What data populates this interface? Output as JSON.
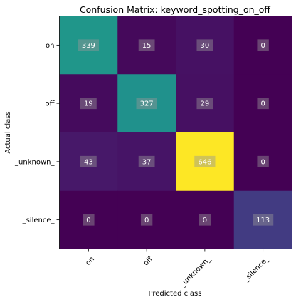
{
  "chart_data": {
    "type": "heatmap",
    "title": "Confusion Matrix: keyword_spotting_on_off",
    "xlabel": "Predicted class",
    "ylabel": "Actual class",
    "x_categories": [
      "on",
      "off",
      "_unknown_",
      "_silence_"
    ],
    "y_categories": [
      "on",
      "off",
      "_unknown_",
      "_silence_"
    ],
    "values": [
      [
        339,
        15,
        30,
        0
      ],
      [
        19,
        327,
        29,
        0
      ],
      [
        43,
        37,
        646,
        0
      ],
      [
        0,
        0,
        0,
        113
      ]
    ],
    "colormap": "viridis",
    "value_range": [
      0,
      646
    ],
    "grid": false
  }
}
